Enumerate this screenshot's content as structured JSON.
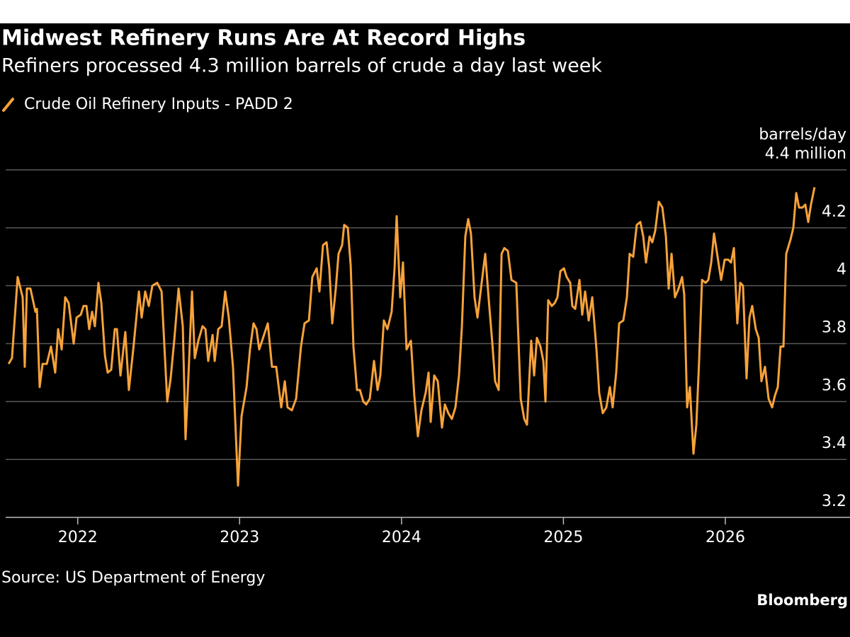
{
  "chart_data": {
    "type": "line",
    "title": "Midwest Refinery Runs Are At Record Highs",
    "subtitle": "Refiners processed 4.3 million barrels of crude a day last week",
    "y_unit": "barrels/day",
    "source": "Source: US Department of Energy",
    "logo": "Bloomberg",
    "xlim": [
      2021.52,
      2026.77
    ],
    "xticks": [
      2022,
      2023,
      2024,
      2025,
      2026
    ],
    "ylim": [
      3.2,
      4.4
    ],
    "yticks": [
      3.2,
      3.4,
      3.6,
      3.8,
      4.0,
      4.2,
      {
        "value": 4.4,
        "label": "4.4 million"
      }
    ],
    "grid": true,
    "x": [
      2021.573,
      2021.594,
      2021.629,
      2021.66,
      2021.673,
      2021.686,
      2021.708,
      2021.739,
      2021.748,
      2021.765,
      2021.783,
      2021.809,
      2021.835,
      2021.861,
      2021.879,
      2021.901,
      2021.923,
      2021.944,
      2021.975,
      2021.993,
      2022.019,
      2022.036,
      2022.054,
      2022.071,
      2022.089,
      2022.106,
      2022.128,
      2022.146,
      2022.168,
      2022.185,
      2022.207,
      2022.229,
      2022.242,
      2022.264,
      2022.294,
      2022.316,
      2022.343,
      2022.378,
      2022.395,
      2022.417,
      2022.439,
      2022.461,
      2022.491,
      2022.518,
      2022.553,
      2022.574,
      2022.596,
      2022.623,
      2022.649,
      2022.666,
      2022.684,
      2022.706,
      2022.723,
      2022.745,
      2022.771,
      2022.789,
      2022.806,
      2022.833,
      2022.846,
      2022.868,
      2022.889,
      2022.911,
      2022.933,
      2022.959,
      2022.99,
      2023.012,
      2023.043,
      2023.064,
      2023.086,
      2023.104,
      2023.121,
      2023.139,
      2023.174,
      2023.2,
      2023.226,
      2023.257,
      2023.279,
      2023.296,
      2023.323,
      2023.349,
      2023.379,
      2023.401,
      2023.428,
      2023.449,
      2023.476,
      2023.493,
      2023.515,
      2023.537,
      2023.554,
      2023.572,
      2023.594,
      2023.611,
      2023.633,
      2023.646,
      2023.668,
      2023.686,
      2023.703,
      2023.725,
      2023.743,
      2023.764,
      2023.782,
      2023.804,
      2023.83,
      2023.852,
      2023.869,
      2023.891,
      2023.913,
      2023.939,
      2023.957,
      2023.97,
      2023.992,
      2024.009,
      2024.031,
      2024.058,
      2024.079,
      2024.101,
      2024.123,
      2024.149,
      2024.167,
      2024.18,
      2024.202,
      2024.224,
      2024.25,
      2024.268,
      2024.289,
      2024.311,
      2024.333,
      2024.355,
      2024.373,
      2024.394,
      2024.412,
      2024.429,
      2024.451,
      2024.469,
      2024.495,
      2024.517,
      2024.539,
      2024.561,
      2024.578,
      2024.6,
      2024.618,
      2024.635,
      2024.657,
      2024.679,
      2024.709,
      2024.736,
      2024.758,
      2024.775,
      2024.801,
      2024.819,
      2024.836,
      2024.858,
      2024.876,
      2024.889,
      2024.906,
      2024.928,
      2024.946,
      2024.963,
      2024.981,
      2025.003,
      2025.02,
      2025.042,
      2025.055,
      2025.073,
      2025.099,
      2025.116,
      2025.134,
      2025.156,
      2025.178,
      2025.204,
      2025.221,
      2025.243,
      2025.265,
      2025.287,
      2025.304,
      2025.326,
      2025.344,
      2025.37,
      2025.392,
      2025.409,
      2025.431,
      2025.453,
      2025.475,
      2025.493,
      2025.51,
      2025.532,
      2025.549,
      2025.567,
      2025.589,
      2025.611,
      2025.633,
      2025.65,
      2025.668,
      2025.689,
      2025.711,
      2025.733,
      2025.746,
      2025.764,
      2025.781,
      2025.803,
      2025.821,
      2025.838,
      2025.856,
      2025.878,
      2025.895,
      2025.913,
      2025.93,
      2025.952,
      2025.974,
      2025.996,
      2026.018,
      2026.035,
      2026.053,
      2026.074,
      2026.092,
      2026.109,
      2026.131,
      2026.149,
      2026.166,
      2026.188,
      2026.206,
      2026.223,
      2026.245,
      2026.267,
      2026.289,
      2026.306,
      2026.324,
      2026.341,
      2026.359,
      2026.376,
      2026.403,
      2026.42,
      2026.438,
      2026.455,
      2026.477,
      2026.494,
      2026.512,
      2026.529,
      2026.551
    ],
    "series": [
      {
        "name": "Crude Oil Refinery Inputs - PADD 2",
        "color": "#f7a23a",
        "values": [
          3.73,
          3.75,
          4.03,
          3.96,
          3.72,
          3.99,
          3.99,
          3.91,
          3.92,
          3.65,
          3.73,
          3.73,
          3.79,
          3.7,
          3.85,
          3.78,
          3.96,
          3.94,
          3.8,
          3.89,
          3.9,
          3.93,
          3.93,
          3.85,
          3.91,
          3.86,
          4.01,
          3.94,
          3.76,
          3.7,
          3.71,
          3.85,
          3.85,
          3.69,
          3.84,
          3.64,
          3.78,
          3.98,
          3.89,
          3.98,
          3.93,
          4.0,
          4.01,
          3.98,
          3.6,
          3.68,
          3.81,
          3.99,
          3.86,
          3.47,
          3.69,
          3.98,
          3.75,
          3.81,
          3.86,
          3.85,
          3.74,
          3.83,
          3.74,
          3.85,
          3.86,
          3.98,
          3.89,
          3.72,
          3.31,
          3.55,
          3.65,
          3.78,
          3.87,
          3.85,
          3.78,
          3.81,
          3.87,
          3.72,
          3.72,
          3.58,
          3.67,
          3.58,
          3.57,
          3.61,
          3.79,
          3.87,
          3.88,
          4.03,
          4.06,
          3.98,
          4.14,
          4.15,
          4.06,
          3.87,
          3.99,
          4.11,
          4.14,
          4.21,
          4.2,
          4.07,
          3.79,
          3.64,
          3.64,
          3.6,
          3.59,
          3.61,
          3.74,
          3.64,
          3.69,
          3.88,
          3.85,
          3.91,
          4.06,
          4.24,
          3.96,
          4.08,
          3.78,
          3.81,
          3.62,
          3.48,
          3.57,
          3.63,
          3.7,
          3.53,
          3.69,
          3.67,
          3.51,
          3.59,
          3.56,
          3.54,
          3.58,
          3.69,
          3.86,
          4.17,
          4.23,
          4.18,
          3.96,
          3.89,
          4.01,
          4.11,
          3.95,
          3.8,
          3.67,
          3.64,
          4.11,
          4.13,
          4.12,
          4.02,
          4.01,
          3.61,
          3.54,
          3.52,
          3.81,
          3.69,
          3.82,
          3.79,
          3.74,
          3.6,
          3.95,
          3.93,
          3.94,
          3.96,
          4.05,
          4.06,
          4.03,
          4.01,
          3.93,
          3.92,
          4.02,
          3.9,
          3.98,
          3.88,
          3.96,
          3.78,
          3.63,
          3.56,
          3.58,
          3.65,
          3.58,
          3.7,
          3.87,
          3.88,
          3.96,
          4.11,
          4.1,
          4.21,
          4.22,
          4.17,
          4.08,
          4.17,
          4.15,
          4.19,
          4.29,
          4.27,
          4.17,
          3.99,
          4.11,
          3.96,
          3.99,
          4.03,
          3.97,
          3.58,
          3.65,
          3.42,
          3.52,
          3.74,
          4.02,
          4.01,
          4.02,
          4.08,
          4.18,
          4.1,
          4.02,
          4.09,
          4.09,
          4.08,
          4.13,
          3.87,
          4.01,
          4.0,
          3.68,
          3.89,
          3.93,
          3.85,
          3.82,
          3.67,
          3.72,
          3.61,
          3.58,
          3.62,
          3.65,
          3.79,
          3.79,
          4.11,
          4.16,
          4.2,
          4.32,
          4.27,
          4.27,
          4.28,
          4.22,
          4.28,
          4.34
        ]
      }
    ]
  }
}
